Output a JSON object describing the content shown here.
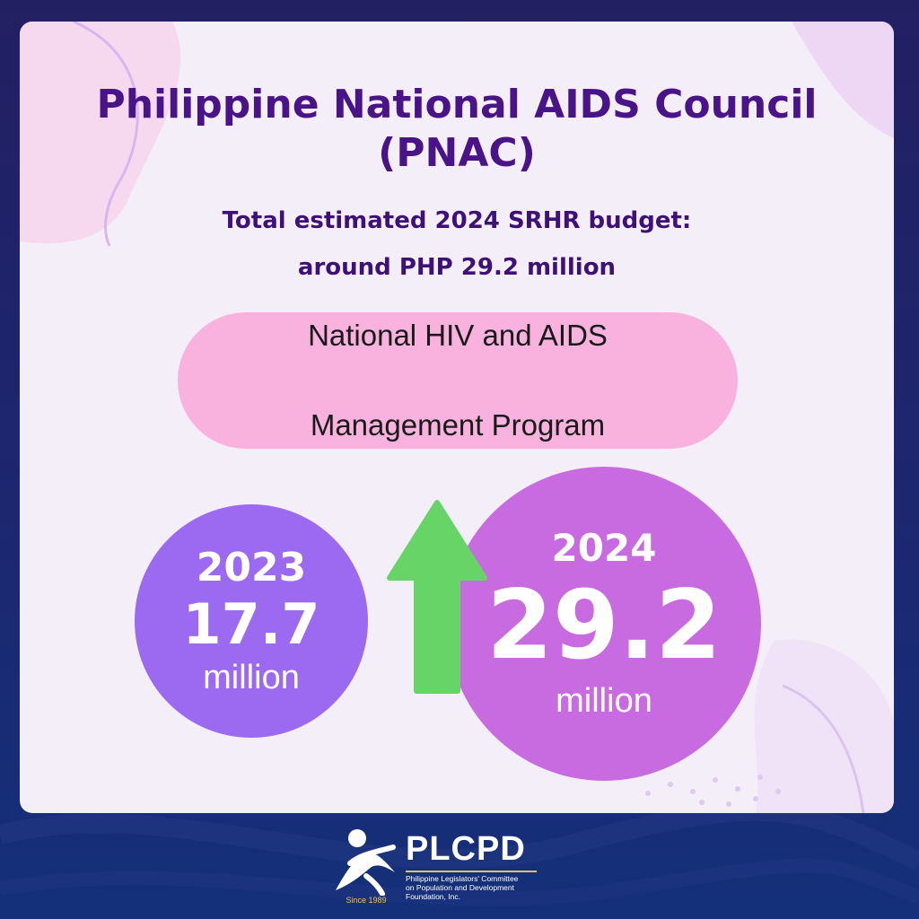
{
  "header": {
    "title_line1": "Philippine National AIDS Council",
    "title_line2": "(PNAC)",
    "subtitle_line1": "Total estimated 2024 SRHR budget:",
    "subtitle_line2": "around PHP 29.2 million"
  },
  "program": {
    "line1": "National HIV and AIDS",
    "line2": "Management Program"
  },
  "budget_2023": {
    "year": "2023",
    "amount": "17.7",
    "unit": "million"
  },
  "budget_2024": {
    "year": "2024",
    "amount": "29.2",
    "unit": "million"
  },
  "trend": {
    "direction": "up",
    "color": "#66d466"
  },
  "logo": {
    "name": "PLCPD",
    "since": "Since 1989",
    "desc_line1": "Philippine Legislators' Committee",
    "desc_line2": "on Population and Development",
    "desc_line3": "Foundation, Inc."
  },
  "colors": {
    "title": "#4a1489",
    "pill": "#f8b2dd",
    "circle_2023": "#9b6af1",
    "circle_2024": "#c86be0",
    "background": "#1c2770"
  }
}
